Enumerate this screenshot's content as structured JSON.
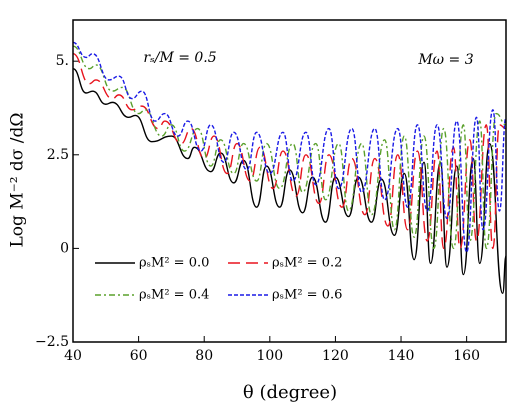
{
  "chart_data": {
    "type": "line",
    "xlabel": "θ (degree)",
    "ylabel": "Log M⁻² dσ /dΩ",
    "annotations": [
      "rₛ/M = 0.5",
      "Mω = 3"
    ],
    "xlim": [
      40,
      172
    ],
    "ylim": [
      -2.5,
      6.1
    ],
    "xticks": [
      40,
      60,
      80,
      100,
      120,
      140,
      160
    ],
    "yticks": [
      {
        "value": -2.5,
        "label": "−2.5"
      },
      0,
      2.5,
      {
        "value": 5,
        "label": "5."
      }
    ],
    "series": [
      {
        "name": "ρₛM² = 0.0",
        "color": "#000000",
        "dash": "solid",
        "x": [
          40,
          44,
          46,
          50,
          52,
          57,
          59,
          64,
          70,
          75,
          77,
          82,
          85,
          89,
          92,
          96,
          99,
          103,
          106,
          110,
          113,
          117,
          120,
          124,
          127,
          131,
          134,
          138,
          141,
          144,
          147,
          149,
          152,
          154,
          157,
          159,
          162,
          164,
          167,
          171,
          172
        ],
        "values": [
          4.8,
          4.15,
          4.2,
          3.85,
          3.9,
          3.5,
          3.55,
          2.85,
          3.0,
          2.4,
          2.7,
          2.05,
          2.55,
          1.75,
          2.35,
          1.1,
          2.2,
          1.1,
          2.1,
          0.95,
          1.9,
          0.7,
          1.9,
          0.85,
          1.9,
          0.7,
          1.85,
          0.35,
          2.0,
          -0.3,
          2.3,
          -0.4,
          2.3,
          -0.5,
          2.2,
          -0.7,
          2.4,
          -0.4,
          2.8,
          -1.2,
          -0.2
        ]
      },
      {
        "name": "ρₛM² = 0.2",
        "color": "#e8141e",
        "dash": "dashed",
        "x": [
          40,
          45,
          47,
          52,
          54,
          58,
          61,
          66,
          68,
          73,
          76,
          80,
          83,
          87,
          90,
          94,
          97,
          101,
          104,
          108,
          111,
          115,
          118,
          122,
          125,
          129,
          132,
          136,
          139,
          142,
          145,
          148,
          151,
          153,
          156,
          158,
          161,
          163,
          166,
          168,
          170,
          172
        ],
        "values": [
          5.2,
          4.4,
          4.5,
          4.0,
          4.1,
          3.7,
          3.8,
          3.2,
          3.4,
          2.8,
          3.2,
          2.4,
          3.0,
          2.0,
          2.8,
          1.8,
          2.7,
          1.6,
          2.6,
          1.4,
          2.5,
          1.2,
          2.5,
          1.1,
          2.4,
          0.9,
          2.4,
          0.6,
          2.5,
          0.5,
          2.6,
          0.2,
          2.6,
          0.0,
          2.7,
          0.0,
          2.9,
          0.2,
          3.3,
          0.0,
          3.3,
          3.2
        ]
      },
      {
        "name": "ρₛM² = 0.4",
        "color": "#5aa02c",
        "dash": "dashdot",
        "x": [
          40,
          45,
          47,
          52,
          55,
          60,
          62,
          67,
          70,
          74,
          78,
          82,
          85,
          89,
          92,
          96,
          99,
          103,
          107,
          110,
          114,
          117,
          121,
          124,
          128,
          131,
          135,
          138,
          141,
          144,
          147,
          150,
          153,
          156,
          159,
          161,
          164,
          166,
          169,
          172
        ],
        "values": [
          5.4,
          4.8,
          4.9,
          4.2,
          4.3,
          3.6,
          3.7,
          3.0,
          3.3,
          2.6,
          3.2,
          2.2,
          2.9,
          2.0,
          2.8,
          1.8,
          2.8,
          1.6,
          2.8,
          1.5,
          2.8,
          1.3,
          2.8,
          1.0,
          2.8,
          0.9,
          2.9,
          0.5,
          3.0,
          0.3,
          3.0,
          0.0,
          3.2,
          0.0,
          3.3,
          0.2,
          3.4,
          0.0,
          3.6,
          3.3
        ]
      },
      {
        "name": "ρₛM² = 0.6",
        "color": "#1a1ae6",
        "dash": "dotted",
        "x": [
          40,
          44,
          46,
          51,
          54,
          58,
          61,
          65,
          68,
          72,
          75,
          79,
          82,
          86,
          89,
          93,
          96,
          100,
          104,
          107,
          111,
          114,
          118,
          121,
          125,
          128,
          132,
          135,
          139,
          142,
          145,
          148,
          151,
          154,
          157,
          160,
          163,
          165,
          168,
          170,
          172
        ],
        "values": [
          5.5,
          5.1,
          5.2,
          4.5,
          4.6,
          4.0,
          4.2,
          3.4,
          3.6,
          3.0,
          3.4,
          2.6,
          3.3,
          2.3,
          3.1,
          2.1,
          3.1,
          2.0,
          3.1,
          1.8,
          3.1,
          1.7,
          3.2,
          1.6,
          3.2,
          1.5,
          3.2,
          1.3,
          3.2,
          1.1,
          3.3,
          1.0,
          3.3,
          0.8,
          3.4,
          -0.1,
          3.5,
          0.5,
          3.7,
          1.0,
          3.5
        ]
      }
    ]
  }
}
